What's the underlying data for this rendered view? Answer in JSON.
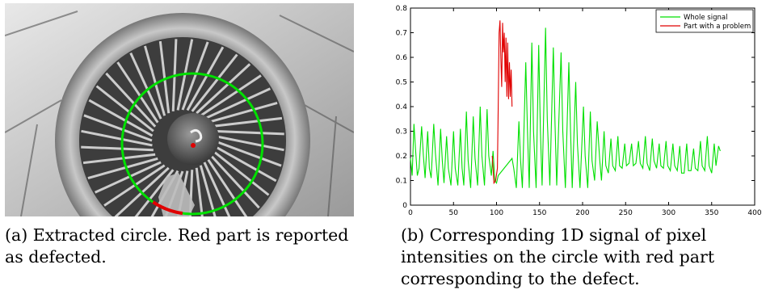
{
  "figure": {
    "caption_a": "(a) Extracted circle. Red part is reported as defected.",
    "caption_b": "(b) Corresponding 1D signal of pixel intensities on the circle with red part corresponding to the defect."
  },
  "colors": {
    "green": "#00e000",
    "red": "#e00000"
  },
  "chart_data": {
    "type": "line",
    "xlim": [
      0,
      400
    ],
    "ylim": [
      0,
      0.8
    ],
    "xticks": [
      "0",
      "50",
      "100",
      "150",
      "200",
      "250",
      "300",
      "350",
      "400"
    ],
    "yticks": [
      "0",
      "0.1",
      "0.2",
      "0.3",
      "0.4",
      "0.5",
      "0.6",
      "0.7",
      "0.8"
    ],
    "legend_position": "top-right",
    "grid": false,
    "series": [
      {
        "name": "Whole signal",
        "color": "#00e000",
        "points": [
          [
            0,
            0.19
          ],
          [
            2,
            0.12
          ],
          [
            4,
            0.33
          ],
          [
            6,
            0.22
          ],
          [
            8,
            0.12
          ],
          [
            10,
            0.15
          ],
          [
            13,
            0.32
          ],
          [
            15,
            0.2
          ],
          [
            17,
            0.11
          ],
          [
            20,
            0.3
          ],
          [
            22,
            0.15
          ],
          [
            24,
            0.11
          ],
          [
            27,
            0.33
          ],
          [
            29,
            0.21
          ],
          [
            32,
            0.08
          ],
          [
            35,
            0.31
          ],
          [
            37,
            0.18
          ],
          [
            39,
            0.09
          ],
          [
            42,
            0.28
          ],
          [
            44,
            0.15
          ],
          [
            47,
            0.08
          ],
          [
            50,
            0.3
          ],
          [
            52,
            0.15
          ],
          [
            55,
            0.08
          ],
          [
            58,
            0.31
          ],
          [
            60,
            0.15
          ],
          [
            62,
            0.08
          ],
          [
            65,
            0.38
          ],
          [
            67,
            0.18
          ],
          [
            70,
            0.07
          ],
          [
            73,
            0.36
          ],
          [
            75,
            0.19
          ],
          [
            78,
            0.08
          ],
          [
            81,
            0.4
          ],
          [
            83,
            0.2
          ],
          [
            86,
            0.08
          ],
          [
            89,
            0.39
          ],
          [
            91,
            0.2
          ],
          [
            94,
            0.12
          ],
          [
            96,
            0.22
          ],
          [
            98,
            0.1
          ],
          [
            100,
            0.09
          ],
          [
            102,
            0.12
          ],
          [
            118,
            0.19
          ],
          [
            120,
            0.15
          ],
          [
            123,
            0.07
          ],
          [
            126,
            0.34
          ],
          [
            128,
            0.18
          ],
          [
            130,
            0.07
          ],
          [
            134,
            0.58
          ],
          [
            136,
            0.3
          ],
          [
            138,
            0.07
          ],
          [
            141,
            0.66
          ],
          [
            143,
            0.3
          ],
          [
            146,
            0.07
          ],
          [
            149,
            0.65
          ],
          [
            151,
            0.3
          ],
          [
            153,
            0.08
          ],
          [
            157,
            0.72
          ],
          [
            159,
            0.35
          ],
          [
            162,
            0.08
          ],
          [
            166,
            0.64
          ],
          [
            168,
            0.33
          ],
          [
            170,
            0.08
          ],
          [
            175,
            0.62
          ],
          [
            177,
            0.3
          ],
          [
            180,
            0.07
          ],
          [
            184,
            0.58
          ],
          [
            186,
            0.3
          ],
          [
            188,
            0.07
          ],
          [
            192,
            0.5
          ],
          [
            194,
            0.25
          ],
          [
            197,
            0.07
          ],
          [
            201,
            0.4
          ],
          [
            203,
            0.2
          ],
          [
            206,
            0.07
          ],
          [
            209,
            0.38
          ],
          [
            211,
            0.18
          ],
          [
            214,
            0.1
          ],
          [
            217,
            0.34
          ],
          [
            220,
            0.18
          ],
          [
            222,
            0.1
          ],
          [
            225,
            0.3
          ],
          [
            227,
            0.16
          ],
          [
            230,
            0.13
          ],
          [
            233,
            0.27
          ],
          [
            235,
            0.16
          ],
          [
            238,
            0.14
          ],
          [
            241,
            0.28
          ],
          [
            243,
            0.16
          ],
          [
            246,
            0.15
          ],
          [
            249,
            0.25
          ],
          [
            251,
            0.16
          ],
          [
            254,
            0.17
          ],
          [
            257,
            0.25
          ],
          [
            259,
            0.16
          ],
          [
            262,
            0.17
          ],
          [
            265,
            0.26
          ],
          [
            267,
            0.17
          ],
          [
            270,
            0.15
          ],
          [
            273,
            0.28
          ],
          [
            275,
            0.17
          ],
          [
            278,
            0.14
          ],
          [
            281,
            0.27
          ],
          [
            283,
            0.18
          ],
          [
            286,
            0.15
          ],
          [
            289,
            0.25
          ],
          [
            291,
            0.16
          ],
          [
            294,
            0.15
          ],
          [
            297,
            0.26
          ],
          [
            299,
            0.16
          ],
          [
            302,
            0.14
          ],
          [
            305,
            0.25
          ],
          [
            307,
            0.16
          ],
          [
            310,
            0.14
          ],
          [
            313,
            0.24
          ],
          [
            315,
            0.13
          ],
          [
            318,
            0.13
          ],
          [
            321,
            0.25
          ],
          [
            323,
            0.14
          ],
          [
            326,
            0.14
          ],
          [
            329,
            0.23
          ],
          [
            331,
            0.15
          ],
          [
            334,
            0.14
          ],
          [
            337,
            0.26
          ],
          [
            339,
            0.16
          ],
          [
            342,
            0.14
          ],
          [
            345,
            0.28
          ],
          [
            347,
            0.16
          ],
          [
            350,
            0.13
          ],
          [
            353,
            0.25
          ],
          [
            355,
            0.16
          ],
          [
            358,
            0.24
          ],
          [
            360,
            0.22
          ]
        ]
      },
      {
        "name": "Part with a problem",
        "color": "#e00000",
        "points": [
          [
            95,
            0.2
          ],
          [
            97,
            0.09
          ],
          [
            99,
            0.1
          ],
          [
            101,
            0.15
          ],
          [
            102,
            0.4
          ],
          [
            103,
            0.7
          ],
          [
            104,
            0.75
          ],
          [
            105,
            0.6
          ],
          [
            106,
            0.48
          ],
          [
            107,
            0.74
          ],
          [
            108,
            0.62
          ],
          [
            109,
            0.7
          ],
          [
            110,
            0.5
          ],
          [
            111,
            0.68
          ],
          [
            112,
            0.44
          ],
          [
            113,
            0.66
          ],
          [
            114,
            0.43
          ],
          [
            115,
            0.58
          ],
          [
            116,
            0.44
          ],
          [
            117,
            0.55
          ],
          [
            118,
            0.4
          ]
        ]
      }
    ]
  }
}
